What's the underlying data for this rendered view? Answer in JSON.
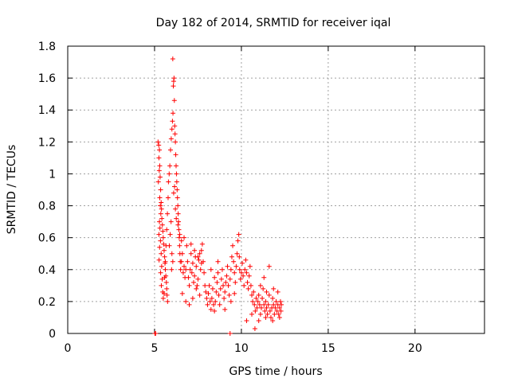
{
  "chart_data": {
    "type": "scatter",
    "title": "Day 182 of 2014, SRMTID for receiver iqal",
    "xlabel": "GPS time / hours",
    "ylabel": "SRMTID / TECUs",
    "xlim": [
      0,
      24
    ],
    "ylim": [
      0,
      1.8
    ],
    "xticks": [
      0,
      5,
      10,
      15,
      20
    ],
    "yticks": [
      0,
      0.2,
      0.4,
      0.6,
      0.8,
      1,
      1.2,
      1.4,
      1.6,
      1.8
    ],
    "xtick_labels": [
      "0",
      "5",
      "10",
      "15",
      "20"
    ],
    "ytick_labels": [
      "0",
      "0.2",
      "0.4",
      "0.6",
      "0.8",
      "1",
      "1.2",
      "1.4",
      "1.6",
      "1.8"
    ],
    "grid": true,
    "marker": "+",
    "color": "#ff0000",
    "series": [
      {
        "points": [
          [
            5.02,
            0.0
          ],
          [
            5.06,
            0.0
          ],
          [
            9.35,
            0.0
          ],
          [
            5.2,
            1.2
          ],
          [
            5.24,
            1.18
          ],
          [
            5.28,
            1.15
          ],
          [
            5.25,
            1.1
          ],
          [
            5.3,
            1.05
          ],
          [
            5.27,
            1.02
          ],
          [
            5.32,
            0.98
          ],
          [
            5.22,
            0.95
          ],
          [
            5.35,
            0.9
          ],
          [
            5.3,
            0.85
          ],
          [
            5.38,
            0.82
          ],
          [
            5.33,
            0.8
          ],
          [
            5.4,
            0.78
          ],
          [
            5.36,
            0.75
          ],
          [
            5.42,
            0.72
          ],
          [
            5.28,
            0.7
          ],
          [
            5.45,
            0.68
          ],
          [
            5.31,
            0.66
          ],
          [
            5.48,
            0.64
          ],
          [
            5.25,
            0.62
          ],
          [
            5.5,
            0.6
          ],
          [
            5.34,
            0.58
          ],
          [
            5.52,
            0.56
          ],
          [
            5.29,
            0.54
          ],
          [
            5.55,
            0.52
          ],
          [
            5.38,
            0.5
          ],
          [
            5.58,
            0.48
          ],
          [
            5.26,
            0.46
          ],
          [
            5.6,
            0.44
          ],
          [
            5.41,
            0.42
          ],
          [
            5.62,
            0.4
          ],
          [
            5.35,
            0.38
          ],
          [
            5.65,
            0.36
          ],
          [
            5.44,
            0.34
          ],
          [
            5.68,
            0.32
          ],
          [
            5.39,
            0.3
          ],
          [
            5.7,
            0.28
          ],
          [
            5.47,
            0.26
          ],
          [
            5.72,
            0.24
          ],
          [
            5.5,
            0.22
          ],
          [
            5.75,
            0.2
          ],
          [
            5.55,
            0.25
          ],
          [
            5.58,
            0.35
          ],
          [
            5.62,
            0.45
          ],
          [
            5.66,
            0.55
          ],
          [
            5.7,
            0.65
          ],
          [
            5.74,
            0.75
          ],
          [
            5.78,
            0.85
          ],
          [
            5.8,
            0.95
          ],
          [
            5.84,
            1.0
          ],
          [
            5.88,
            1.05
          ],
          [
            5.92,
            1.15
          ],
          [
            5.96,
            1.22
          ],
          [
            6.0,
            1.28
          ],
          [
            6.03,
            1.33
          ],
          [
            6.06,
            1.38
          ],
          [
            6.08,
            1.55
          ],
          [
            6.1,
            1.58
          ],
          [
            6.12,
            1.6
          ],
          [
            6.05,
            1.72
          ],
          [
            6.14,
            1.46
          ],
          [
            6.16,
            1.3
          ],
          [
            6.18,
            1.25
          ],
          [
            6.2,
            1.2
          ],
          [
            6.22,
            1.12
          ],
          [
            6.24,
            1.05
          ],
          [
            6.26,
            1.0
          ],
          [
            6.28,
            0.95
          ],
          [
            6.3,
            0.9
          ],
          [
            6.32,
            0.85
          ],
          [
            6.34,
            0.8
          ],
          [
            6.36,
            0.75
          ],
          [
            6.38,
            0.7
          ],
          [
            6.4,
            0.65
          ],
          [
            6.42,
            0.6
          ],
          [
            6.44,
            0.55
          ],
          [
            6.46,
            0.5
          ],
          [
            6.48,
            0.45
          ],
          [
            6.1,
            0.88
          ],
          [
            6.15,
            0.92
          ],
          [
            6.2,
            0.78
          ],
          [
            6.25,
            0.72
          ],
          [
            6.35,
            0.68
          ],
          [
            6.45,
            0.62
          ],
          [
            5.95,
            0.7
          ],
          [
            5.9,
            0.62
          ],
          [
            5.85,
            0.55
          ],
          [
            6.0,
            0.5
          ],
          [
            6.05,
            0.45
          ],
          [
            5.98,
            0.4
          ],
          [
            6.5,
            0.4
          ],
          [
            6.55,
            0.45
          ],
          [
            6.6,
            0.5
          ],
          [
            6.65,
            0.38
          ],
          [
            6.7,
            0.42
          ],
          [
            6.75,
            0.35
          ],
          [
            6.8,
            0.4
          ],
          [
            6.85,
            0.55
          ],
          [
            6.9,
            0.45
          ],
          [
            6.95,
            0.35
          ],
          [
            7.0,
            0.3
          ],
          [
            7.05,
            0.4
          ],
          [
            7.1,
            0.5
          ],
          [
            7.15,
            0.38
          ],
          [
            7.2,
            0.44
          ],
          [
            7.25,
            0.32
          ],
          [
            7.3,
            0.36
          ],
          [
            7.35,
            0.48
          ],
          [
            7.4,
            0.42
          ],
          [
            7.45,
            0.3
          ],
          [
            7.5,
            0.34
          ],
          [
            7.55,
            0.46
          ],
          [
            7.6,
            0.5
          ],
          [
            7.65,
            0.4
          ],
          [
            7.7,
            0.52
          ],
          [
            7.75,
            0.56
          ],
          [
            7.8,
            0.45
          ],
          [
            7.85,
            0.38
          ],
          [
            7.9,
            0.3
          ],
          [
            7.95,
            0.26
          ],
          [
            6.6,
            0.25
          ],
          [
            6.8,
            0.2
          ],
          [
            7.0,
            0.18
          ],
          [
            7.2,
            0.22
          ],
          [
            7.4,
            0.28
          ],
          [
            7.6,
            0.24
          ],
          [
            6.55,
            0.58
          ],
          [
            6.7,
            0.6
          ],
          [
            7.1,
            0.56
          ],
          [
            7.3,
            0.52
          ],
          [
            7.5,
            0.48
          ],
          [
            7.7,
            0.44
          ],
          [
            8.0,
            0.22
          ],
          [
            8.05,
            0.18
          ],
          [
            8.1,
            0.25
          ],
          [
            8.15,
            0.3
          ],
          [
            8.2,
            0.2
          ],
          [
            8.25,
            0.15
          ],
          [
            8.3,
            0.22
          ],
          [
            8.35,
            0.28
          ],
          [
            8.4,
            0.18
          ],
          [
            8.45,
            0.14
          ],
          [
            8.5,
            0.2
          ],
          [
            8.55,
            0.26
          ],
          [
            8.6,
            0.32
          ],
          [
            8.65,
            0.38
          ],
          [
            8.7,
            0.24
          ],
          [
            8.75,
            0.18
          ],
          [
            8.8,
            0.28
          ],
          [
            8.85,
            0.34
          ],
          [
            8.9,
            0.4
          ],
          [
            8.95,
            0.3
          ],
          [
            9.0,
            0.22
          ],
          [
            9.05,
            0.26
          ],
          [
            9.1,
            0.32
          ],
          [
            9.15,
            0.36
          ],
          [
            9.2,
            0.42
          ],
          [
            9.25,
            0.3
          ],
          [
            9.3,
            0.24
          ],
          [
            9.35,
            0.34
          ],
          [
            9.4,
            0.4
          ],
          [
            9.45,
            0.48
          ],
          [
            9.5,
            0.55
          ],
          [
            9.55,
            0.45
          ],
          [
            9.6,
            0.38
          ],
          [
            9.65,
            0.32
          ],
          [
            9.7,
            0.42
          ],
          [
            9.75,
            0.5
          ],
          [
            9.8,
            0.58
          ],
          [
            9.85,
            0.62
          ],
          [
            9.88,
            0.48
          ],
          [
            9.9,
            0.4
          ],
          [
            9.95,
            0.34
          ],
          [
            10.0,
            0.38
          ],
          [
            10.05,
            0.44
          ],
          [
            10.1,
            0.36
          ],
          [
            10.15,
            0.3
          ],
          [
            10.2,
            0.4
          ],
          [
            10.25,
            0.46
          ],
          [
            10.3,
            0.38
          ],
          [
            10.35,
            0.32
          ],
          [
            10.4,
            0.28
          ],
          [
            10.45,
            0.36
          ],
          [
            10.5,
            0.42
          ],
          [
            10.55,
            0.3
          ],
          [
            10.6,
            0.24
          ],
          [
            10.65,
            0.2
          ],
          [
            10.7,
            0.26
          ],
          [
            10.75,
            0.18
          ],
          [
            10.78,
            0.03
          ],
          [
            10.8,
            0.14
          ],
          [
            10.85,
            0.22
          ],
          [
            10.9,
            0.16
          ],
          [
            10.95,
            0.2
          ],
          [
            11.0,
            0.24
          ],
          [
            11.05,
            0.18
          ],
          [
            11.1,
            0.12
          ],
          [
            11.15,
            0.16
          ],
          [
            11.2,
            0.22
          ],
          [
            11.25,
            0.28
          ],
          [
            11.3,
            0.18
          ],
          [
            11.35,
            0.14
          ],
          [
            11.4,
            0.2
          ],
          [
            11.45,
            0.16
          ],
          [
            11.5,
            0.12
          ],
          [
            11.55,
            0.18
          ],
          [
            11.6,
            0.24
          ],
          [
            11.65,
            0.14
          ],
          [
            11.7,
            0.1
          ],
          [
            11.75,
            0.16
          ],
          [
            11.8,
            0.22
          ],
          [
            11.85,
            0.18
          ],
          [
            11.9,
            0.12
          ],
          [
            11.95,
            0.16
          ],
          [
            12.0,
            0.2
          ],
          [
            12.05,
            0.14
          ],
          [
            12.1,
            0.18
          ],
          [
            12.15,
            0.12
          ],
          [
            12.2,
            0.16
          ],
          [
            12.25,
            0.2
          ],
          [
            12.28,
            0.14
          ],
          [
            12.3,
            0.18
          ],
          [
            11.6,
            0.42
          ],
          [
            11.3,
            0.35
          ],
          [
            11.1,
            0.3
          ],
          [
            11.45,
            0.26
          ],
          [
            11.85,
            0.28
          ],
          [
            12.1,
            0.26
          ],
          [
            10.3,
            0.08
          ],
          [
            10.6,
            0.12
          ],
          [
            11.0,
            0.08
          ],
          [
            11.4,
            0.1
          ],
          [
            11.8,
            0.08
          ],
          [
            12.2,
            0.1
          ],
          [
            8.45,
            0.35
          ],
          [
            8.65,
            0.45
          ],
          [
            9.05,
            0.15
          ],
          [
            9.4,
            0.2
          ],
          [
            9.6,
            0.25
          ],
          [
            8.25,
            0.4
          ]
        ]
      }
    ]
  }
}
